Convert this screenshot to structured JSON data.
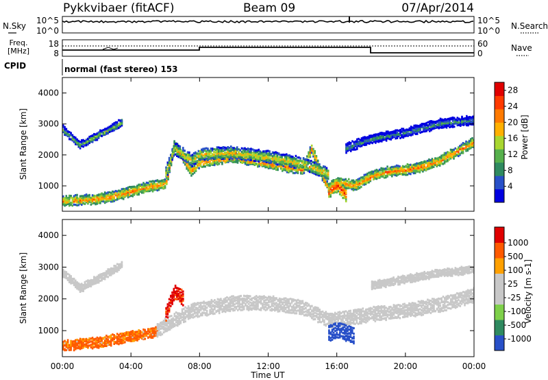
{
  "header": {
    "station": "Pykkvibaer (fitACF)",
    "beam": "Beam 09",
    "date": "07/Apr/2014"
  },
  "sky_panel": {
    "left_label": "N.Sky",
    "right_label": "N.Search",
    "left_ticks": [
      "10^5",
      "10^0"
    ],
    "right_ticks": [
      "10^5",
      "10^0"
    ]
  },
  "freq_panel": {
    "left_label_1": "Freq.",
    "left_label_2": "[MHz]",
    "right_label": "Nave",
    "left_ticks": [
      "18",
      "8"
    ],
    "right_ticks": [
      "60",
      "0"
    ]
  },
  "cpid": {
    "label": "CPID",
    "mode": "normal (fast stereo) 153"
  },
  "colors": {
    "power": [
      "#0000e0",
      "#2850c8",
      "#2f8a60",
      "#56b04c",
      "#a8d630",
      "#ffb000",
      "#ff7a00",
      "#ff3a00",
      "#e00000"
    ],
    "velocity": [
      "#e00000",
      "#ff5a00",
      "#ffa000",
      "#c8c8c8",
      "#c8c8c8",
      "#7ed04a",
      "#2f8a60",
      "#2850c8"
    ],
    "ground_scatter": "#c8c8c8"
  },
  "chart_data": [
    {
      "type": "heatmap",
      "title": "",
      "xlabel": "Time UT",
      "ylabel": "Slant Range [km]",
      "colorbar_label": "Power [dB]",
      "xlim": [
        0,
        24
      ],
      "ylim": [
        180,
        4500
      ],
      "x_tick_labels": [
        "00:00",
        "04:00",
        "08:00",
        "12:00",
        "16:00",
        "20:00",
        "00:00"
      ],
      "y_ticks": [
        1000,
        2000,
        3000,
        4000
      ],
      "colorbar_ticks": [
        4,
        8,
        12,
        16,
        20,
        24,
        28
      ],
      "colorbar_range": [
        0,
        30
      ],
      "bands": [
        {
          "t": [
            0,
            1,
            2,
            3,
            4,
            5,
            5.5,
            6,
            6.5,
            7.5,
            8,
            10,
            12,
            14,
            14.5,
            15,
            15.5,
            16,
            17,
            18,
            19,
            20,
            21,
            22,
            23,
            24
          ],
          "r": [
            500,
            520,
            560,
            650,
            800,
            950,
            1000,
            1050,
            2300,
            1450,
            1750,
            1900,
            1700,
            1500,
            2200,
            1450,
            900,
            1100,
            1000,
            1300,
            1450,
            1500,
            1600,
            1800,
            2100,
            2400
          ],
          "w": 280,
          "level": 22
        },
        {
          "t": [
            0,
            1,
            2,
            3,
            3.5
          ],
          "r": [
            2800,
            2300,
            2600,
            2900,
            3050
          ],
          "w": 200,
          "level": 14
        },
        {
          "t": [
            6,
            6.5,
            7,
            7.5,
            8,
            10,
            12,
            14,
            15.5
          ],
          "r": [
            1400,
            2200,
            2000,
            1800,
            2000,
            2050,
            1900,
            1700,
            1350
          ],
          "w": 350,
          "level": 18
        },
        {
          "t": [
            15.5,
            16,
            16.5
          ],
          "r": [
            800,
            1000,
            700
          ],
          "w": 400,
          "level": 26
        },
        {
          "t": [
            16.5,
            18,
            20,
            22,
            24
          ],
          "r": [
            2200,
            2500,
            2700,
            3000,
            3100
          ],
          "w": 250,
          "level": 10
        }
      ]
    },
    {
      "type": "heatmap",
      "title": "",
      "xlabel": "Time UT",
      "ylabel": "Slant Range [km]",
      "colorbar_label": "Velocity [m s-1]",
      "xlim": [
        0,
        24
      ],
      "ylim": [
        180,
        4500
      ],
      "x_tick_labels": [
        "00:00",
        "04:00",
        "08:00",
        "12:00",
        "16:00",
        "20:00",
        "00:00"
      ],
      "y_ticks": [
        1000,
        2000,
        3000,
        4000
      ],
      "colorbar_ticks": [
        1000,
        500,
        100,
        25,
        -25,
        -100,
        -500,
        -1000
      ],
      "bands": [
        {
          "t": [
            0,
            1,
            2,
            3,
            4,
            5,
            5.5
          ],
          "r": [
            500,
            550,
            600,
            700,
            800,
            900,
            950
          ],
          "w": 280,
          "level": -200
        },
        {
          "t": [
            5.5,
            6.5,
            7.5,
            10,
            12,
            14,
            15.5,
            17,
            18,
            20,
            22,
            24
          ],
          "r": [
            1000,
            1300,
            1600,
            1850,
            1850,
            1700,
            1300,
            1400,
            1500,
            1600,
            1800,
            2100
          ],
          "w": 400,
          "level": 0
        },
        {
          "t": [
            0,
            1,
            2,
            3,
            3.5
          ],
          "r": [
            2800,
            2300,
            2600,
            2900,
            3050
          ],
          "w": 200,
          "level": 0
        },
        {
          "t": [
            6,
            6.5,
            7
          ],
          "r": [
            1500,
            2200,
            2000
          ],
          "w": 400,
          "level": -600
        },
        {
          "t": [
            15.5,
            16,
            17
          ],
          "r": [
            900,
            1000,
            800
          ],
          "w": 450,
          "level": 700
        },
        {
          "t": [
            18,
            20,
            22,
            24
          ],
          "r": [
            2400,
            2600,
            2800,
            2900
          ],
          "w": 200,
          "level": 0
        }
      ]
    }
  ],
  "bottom_axis": {
    "xlabel": "Time UT"
  }
}
